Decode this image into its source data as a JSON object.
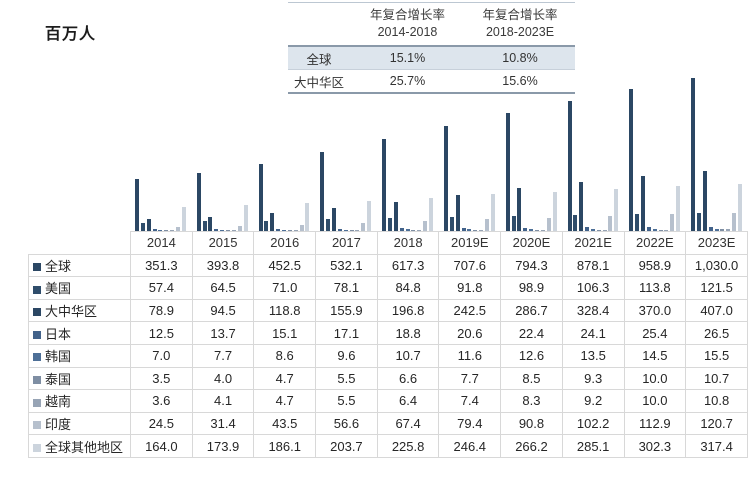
{
  "unit_label": "百万人",
  "growth_table": {
    "headers": [
      {
        "line1": "年复合增长率",
        "line2": "2014-2018"
      },
      {
        "line1": "年复合增长率",
        "line2": "2018-2023E"
      }
    ],
    "rows": [
      {
        "label": "全球",
        "v1": "15.1%",
        "v2": "10.8%"
      },
      {
        "label": "大中华区",
        "v1": "25.7%",
        "v2": "15.6%"
      }
    ],
    "highlight_row_color": "#dde5ed"
  },
  "chart_data": {
    "type": "bar",
    "title": "",
    "ylabel": "百万人",
    "legend_position": "table-left",
    "grid": false,
    "ylim": [
      0,
      1030
    ],
    "categories": [
      "2014",
      "2015",
      "2016",
      "2017",
      "2018",
      "2019E",
      "2020E",
      "2021E",
      "2022E",
      "2023E"
    ],
    "series": [
      {
        "name": "全球",
        "color": "#2b4764",
        "values": [
          351.3,
          393.8,
          452.5,
          532.1,
          617.3,
          707.6,
          794.3,
          878.1,
          958.9,
          1030.0
        ]
      },
      {
        "name": "美国",
        "color": "#2f4d6b",
        "values": [
          57.4,
          64.5,
          71.0,
          78.1,
          84.8,
          91.8,
          98.9,
          106.3,
          113.8,
          121.5
        ]
      },
      {
        "name": "大中华区",
        "color": "#2b4764",
        "values": [
          78.9,
          94.5,
          118.8,
          155.9,
          196.8,
          242.5,
          286.7,
          328.4,
          370.0,
          407.0
        ]
      },
      {
        "name": "日本",
        "color": "#42628a",
        "values": [
          12.5,
          13.7,
          15.1,
          17.1,
          18.8,
          20.6,
          22.4,
          24.1,
          25.4,
          26.5
        ]
      },
      {
        "name": "韩国",
        "color": "#4d6f97",
        "values": [
          7.0,
          7.7,
          8.6,
          9.6,
          10.7,
          11.6,
          12.6,
          13.5,
          14.5,
          15.5
        ]
      },
      {
        "name": "泰国",
        "color": "#7e8ea3",
        "values": [
          3.5,
          4.0,
          4.7,
          5.5,
          6.6,
          7.7,
          8.5,
          9.3,
          10.0,
          10.7
        ]
      },
      {
        "name": "越南",
        "color": "#97a4b5",
        "values": [
          3.6,
          4.1,
          4.7,
          5.5,
          6.4,
          7.4,
          8.3,
          9.2,
          10.0,
          10.8
        ]
      },
      {
        "name": "印度",
        "color": "#b6c0cd",
        "values": [
          24.5,
          31.4,
          43.5,
          56.6,
          67.4,
          79.4,
          90.8,
          102.2,
          112.9,
          120.7
        ]
      },
      {
        "name": "全球其他地区",
        "color": "#ccd4dd",
        "values": [
          164.0,
          173.9,
          186.1,
          203.7,
          225.8,
          246.4,
          266.2,
          285.1,
          302.3,
          317.4
        ]
      }
    ]
  },
  "data_table": {
    "year_headers": [
      "2014",
      "2015",
      "2016",
      "2017",
      "2018",
      "2019E",
      "2020E",
      "2021E",
      "2022E",
      "2023E"
    ],
    "rows": [
      {
        "label": "全球",
        "cells": [
          "351.3",
          "393.8",
          "452.5",
          "532.1",
          "617.3",
          "707.6",
          "794.3",
          "878.1",
          "958.9",
          "1,030.0"
        ]
      },
      {
        "label": "美国",
        "cells": [
          "57.4",
          "64.5",
          "71.0",
          "78.1",
          "84.8",
          "91.8",
          "98.9",
          "106.3",
          "113.8",
          "121.5"
        ]
      },
      {
        "label": "大中华区",
        "cells": [
          "78.9",
          "94.5",
          "118.8",
          "155.9",
          "196.8",
          "242.5",
          "286.7",
          "328.4",
          "370.0",
          "407.0"
        ]
      },
      {
        "label": "日本",
        "cells": [
          "12.5",
          "13.7",
          "15.1",
          "17.1",
          "18.8",
          "20.6",
          "22.4",
          "24.1",
          "25.4",
          "26.5"
        ]
      },
      {
        "label": "韩国",
        "cells": [
          "7.0",
          "7.7",
          "8.6",
          "9.6",
          "10.7",
          "11.6",
          "12.6",
          "13.5",
          "14.5",
          "15.5"
        ]
      },
      {
        "label": "泰国",
        "cells": [
          "3.5",
          "4.0",
          "4.7",
          "5.5",
          "6.6",
          "7.7",
          "8.5",
          "9.3",
          "10.0",
          "10.7"
        ]
      },
      {
        "label": "越南",
        "cells": [
          "3.6",
          "4.1",
          "4.7",
          "5.5",
          "6.4",
          "7.4",
          "8.3",
          "9.2",
          "10.0",
          "10.8"
        ]
      },
      {
        "label": "印度",
        "cells": [
          "24.5",
          "31.4",
          "43.5",
          "56.6",
          "67.4",
          "79.4",
          "90.8",
          "102.2",
          "112.9",
          "120.7"
        ]
      },
      {
        "label": "全球其他地区",
        "cells": [
          "164.0",
          "173.9",
          "186.1",
          "203.7",
          "225.8",
          "246.4",
          "266.2",
          "285.1",
          "302.3",
          "317.4"
        ]
      }
    ]
  }
}
